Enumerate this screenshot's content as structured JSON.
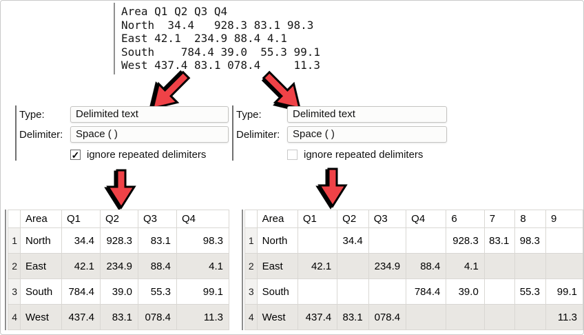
{
  "source_text": {
    "text": "Area Q1 Q2 Q3 Q4\nNorth  34.4   928.3 83.1 98.3\nEast 42.1  234.9 88.4 4.1\nSouth    784.4 39.0  55.3 99.1\nWest 437.4 83.1 078.4     11.3"
  },
  "left_options": {
    "type_label": "Type:",
    "type_value": "Delimited text",
    "delimiter_label": "Delimiter:",
    "delimiter_value": "Space ( )",
    "checkbox_label": "ignore repeated delimiters",
    "checkbox_checked": true
  },
  "right_options": {
    "type_label": "Type:",
    "type_value": "Delimited text",
    "delimiter_label": "Delimiter:",
    "delimiter_value": "Space ( )",
    "checkbox_label": "ignore repeated delimiters",
    "checkbox_checked": false
  },
  "left_table": {
    "headers": [
      "",
      "Area",
      "Q1",
      "Q2",
      "Q3",
      "Q4"
    ],
    "rows": [
      [
        "1",
        "North",
        "34.4",
        "928.3",
        "83.1",
        "98.3"
      ],
      [
        "2",
        "East",
        "42.1",
        "234.9",
        "88.4",
        "4.1"
      ],
      [
        "3",
        "South",
        "784.4",
        "39.0",
        "55.3",
        "99.1"
      ],
      [
        "4",
        "West",
        "437.4",
        "83.1",
        "078.4",
        "11.3"
      ]
    ]
  },
  "right_table": {
    "headers": [
      "",
      "Area",
      "Q1",
      "Q2",
      "Q3",
      "Q4",
      "6",
      "7",
      "8",
      "9"
    ],
    "rows": [
      [
        "1",
        "North",
        "",
        "34.4",
        "",
        "",
        "928.3",
        "83.1",
        "98.3",
        ""
      ],
      [
        "2",
        "East",
        "42.1",
        "",
        "234.9",
        "88.4",
        "4.1",
        "",
        "",
        ""
      ],
      [
        "3",
        "South",
        "",
        "",
        "",
        "784.4",
        "39.0",
        "",
        "55.3",
        "99.1"
      ],
      [
        "4",
        "West",
        "437.4",
        "83.1",
        "078.4",
        "",
        "",
        "",
        "",
        "11.3"
      ]
    ]
  },
  "colors": {
    "arrow_red": "#ef4247",
    "arrow_outline": "#000000",
    "row_stripe": "#e9e7e3",
    "grid_line": "#d9d7d3"
  }
}
